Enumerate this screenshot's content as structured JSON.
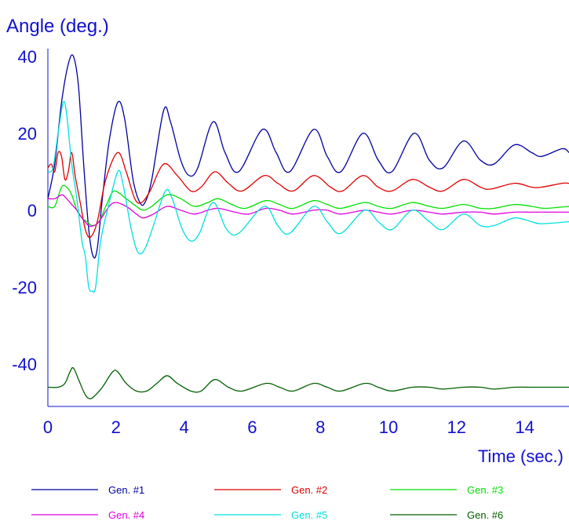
{
  "chart_data": {
    "type": "line",
    "ylabel": "Angle (deg.)",
    "xlabel": "Time (sec.)",
    "xlim": [
      0,
      15.3
    ],
    "ylim": [
      -51,
      42
    ],
    "x_ticks": [
      0,
      2,
      4,
      6,
      8,
      10,
      12,
      14
    ],
    "y_ticks": [
      40,
      20,
      0,
      -20,
      -40
    ],
    "grid": false,
    "legend_position": "bottom",
    "axis_color": "#1010d0",
    "series": [
      {
        "name": "Gen. #1",
        "color": "#0000a0",
        "points": [
          [
            0,
            3
          ],
          [
            0.2,
            12
          ],
          [
            0.4,
            28
          ],
          [
            0.6,
            38
          ],
          [
            0.75,
            40
          ],
          [
            0.9,
            32
          ],
          [
            1.05,
            12
          ],
          [
            1.2,
            -5
          ],
          [
            1.33,
            -12
          ],
          [
            1.45,
            -10
          ],
          [
            1.6,
            3
          ],
          [
            1.8,
            18
          ],
          [
            2.05,
            28
          ],
          [
            2.25,
            24
          ],
          [
            2.5,
            8
          ],
          [
            2.7,
            2
          ],
          [
            2.85,
            2
          ],
          [
            3.05,
            8
          ],
          [
            3.4,
            26
          ],
          [
            3.6,
            23
          ],
          [
            3.9,
            13
          ],
          [
            4.15,
            9
          ],
          [
            4.4,
            11
          ],
          [
            4.85,
            23
          ],
          [
            5.2,
            15
          ],
          [
            5.6,
            10
          ],
          [
            6.3,
            21
          ],
          [
            6.7,
            15
          ],
          [
            7.1,
            10
          ],
          [
            7.8,
            21
          ],
          [
            8.2,
            14
          ],
          [
            8.6,
            10
          ],
          [
            9.25,
            20
          ],
          [
            9.7,
            13
          ],
          [
            10.1,
            10
          ],
          [
            10.75,
            20
          ],
          [
            11.2,
            13
          ],
          [
            11.6,
            11
          ],
          [
            12.2,
            18
          ],
          [
            12.7,
            13
          ],
          [
            13.1,
            12
          ],
          [
            13.7,
            17
          ],
          [
            14.2,
            15
          ],
          [
            14.5,
            14
          ],
          [
            15.1,
            16
          ],
          [
            15.3,
            15
          ]
        ]
      },
      {
        "name": "Gen. #2",
        "color": "#e00000",
        "points": [
          [
            0,
            11
          ],
          [
            0.1,
            12
          ],
          [
            0.2,
            10
          ],
          [
            0.3,
            15
          ],
          [
            0.4,
            14
          ],
          [
            0.5,
            8
          ],
          [
            0.6,
            10
          ],
          [
            0.7,
            15
          ],
          [
            0.8,
            9
          ],
          [
            0.95,
            2
          ],
          [
            1.1,
            -5
          ],
          [
            1.25,
            -7
          ],
          [
            1.45,
            -3
          ],
          [
            1.7,
            8
          ],
          [
            2.05,
            15
          ],
          [
            2.3,
            10
          ],
          [
            2.55,
            3
          ],
          [
            2.75,
            2
          ],
          [
            3,
            5
          ],
          [
            3.4,
            12
          ],
          [
            3.8,
            9
          ],
          [
            4.2,
            5
          ],
          [
            4.5,
            6
          ],
          [
            4.9,
            10
          ],
          [
            5.3,
            7
          ],
          [
            5.7,
            5
          ],
          [
            6.35,
            9
          ],
          [
            6.75,
            7
          ],
          [
            7.2,
            5
          ],
          [
            7.8,
            9
          ],
          [
            8.3,
            6
          ],
          [
            8.65,
            5
          ],
          [
            9.25,
            9
          ],
          [
            9.7,
            6
          ],
          [
            10.1,
            5
          ],
          [
            10.7,
            8
          ],
          [
            11.2,
            6
          ],
          [
            11.6,
            5
          ],
          [
            12.2,
            8
          ],
          [
            12.7,
            6
          ],
          [
            13,
            5.5
          ],
          [
            13.7,
            7
          ],
          [
            14.2,
            6
          ],
          [
            14.5,
            6
          ],
          [
            15.1,
            7
          ],
          [
            15.3,
            7
          ]
        ]
      },
      {
        "name": "Gen. #3",
        "color": "#00e000",
        "points": [
          [
            0,
            1
          ],
          [
            0.2,
            1
          ],
          [
            0.4,
            6
          ],
          [
            0.55,
            6
          ],
          [
            0.7,
            4
          ],
          [
            0.85,
            0
          ],
          [
            1,
            -2
          ],
          [
            1.15,
            -3
          ],
          [
            1.3,
            -4
          ],
          [
            1.5,
            -3
          ],
          [
            1.75,
            2
          ],
          [
            1.95,
            5
          ],
          [
            2.3,
            3
          ],
          [
            2.6,
            1
          ],
          [
            2.8,
            0
          ],
          [
            3.05,
            1
          ],
          [
            3.5,
            4
          ],
          [
            3.9,
            3
          ],
          [
            4.3,
            1
          ],
          [
            4.7,
            2
          ],
          [
            5,
            3
          ],
          [
            5.4,
            1.5
          ],
          [
            5.8,
            0.5
          ],
          [
            6.4,
            2.5
          ],
          [
            6.8,
            1.5
          ],
          [
            7.2,
            0.5
          ],
          [
            7.8,
            2.5
          ],
          [
            8.2,
            1.5
          ],
          [
            8.6,
            0.5
          ],
          [
            9.3,
            2
          ],
          [
            9.7,
            1
          ],
          [
            10.1,
            0.5
          ],
          [
            10.7,
            2
          ],
          [
            11.2,
            1
          ],
          [
            11.6,
            0.5
          ],
          [
            12.2,
            1.5
          ],
          [
            12.7,
            0.5
          ],
          [
            13.1,
            0.5
          ],
          [
            13.7,
            1.5
          ],
          [
            14.2,
            1
          ],
          [
            14.6,
            0.5
          ],
          [
            15.3,
            1
          ]
        ]
      },
      {
        "name": "Gen. #4",
        "color": "#e000e0",
        "points": [
          [
            0,
            3
          ],
          [
            0.2,
            3
          ],
          [
            0.4,
            4
          ],
          [
            0.5,
            3.5
          ],
          [
            0.65,
            2
          ],
          [
            0.85,
            0
          ],
          [
            1,
            -2
          ],
          [
            1.2,
            -4
          ],
          [
            1.35,
            -4
          ],
          [
            1.5,
            -3
          ],
          [
            1.8,
            1
          ],
          [
            2,
            2
          ],
          [
            2.3,
            1
          ],
          [
            2.6,
            -1
          ],
          [
            2.8,
            -2
          ],
          [
            3.1,
            -1
          ],
          [
            3.5,
            1
          ],
          [
            3.9,
            0
          ],
          [
            4.3,
            -1
          ],
          [
            4.7,
            0
          ],
          [
            5,
            0.5
          ],
          [
            5.5,
            -0.5
          ],
          [
            5.9,
            -1
          ],
          [
            6.4,
            0.5
          ],
          [
            6.8,
            0
          ],
          [
            7.2,
            -1
          ],
          [
            7.8,
            0
          ],
          [
            8.2,
            0
          ],
          [
            8.6,
            -1
          ],
          [
            9.3,
            0
          ],
          [
            9.7,
            -0.5
          ],
          [
            10.1,
            -1
          ],
          [
            10.7,
            0
          ],
          [
            11.2,
            -0.5
          ],
          [
            11.6,
            -1
          ],
          [
            12.2,
            -0.5
          ],
          [
            12.7,
            -0.5
          ],
          [
            13.1,
            -1
          ],
          [
            13.7,
            -0.5
          ],
          [
            14.2,
            -0.5
          ],
          [
            14.6,
            -0.5
          ],
          [
            15.3,
            -0.5
          ]
        ]
      },
      {
        "name": "Gen. #5",
        "color": "#00e0e0",
        "points": [
          [
            0,
            10
          ],
          [
            0.15,
            11
          ],
          [
            0.3,
            20
          ],
          [
            0.45,
            28
          ],
          [
            0.55,
            25
          ],
          [
            0.7,
            12
          ],
          [
            0.85,
            3
          ],
          [
            1,
            -8
          ],
          [
            1.1,
            -12
          ],
          [
            1.2,
            -20
          ],
          [
            1.3,
            -21
          ],
          [
            1.4,
            -20
          ],
          [
            1.55,
            -8
          ],
          [
            1.75,
            0
          ],
          [
            2.05,
            10
          ],
          [
            2.2,
            7
          ],
          [
            2.45,
            -5
          ],
          [
            2.65,
            -11
          ],
          [
            2.85,
            -10
          ],
          [
            3.1,
            -4
          ],
          [
            3.45,
            5
          ],
          [
            3.65,
            3
          ],
          [
            3.95,
            -5
          ],
          [
            4.2,
            -8
          ],
          [
            4.45,
            -6
          ],
          [
            4.85,
            2
          ],
          [
            5.25,
            -5
          ],
          [
            5.6,
            -6
          ],
          [
            6.35,
            1
          ],
          [
            6.75,
            -4
          ],
          [
            7.1,
            -6
          ],
          [
            7.8,
            1
          ],
          [
            8.2,
            -3
          ],
          [
            8.6,
            -6
          ],
          [
            9.3,
            0
          ],
          [
            9.7,
            -3
          ],
          [
            10.1,
            -5
          ],
          [
            10.7,
            0
          ],
          [
            11.2,
            -3
          ],
          [
            11.6,
            -5
          ],
          [
            12.2,
            -1
          ],
          [
            12.7,
            -4
          ],
          [
            13.1,
            -4
          ],
          [
            13.7,
            -2
          ],
          [
            14.2,
            -3
          ],
          [
            14.5,
            -3.5
          ],
          [
            15.3,
            -3
          ]
        ]
      },
      {
        "name": "Gen. #6",
        "color": "#006000",
        "points": [
          [
            0,
            -46
          ],
          [
            0.3,
            -46
          ],
          [
            0.5,
            -45
          ],
          [
            0.65,
            -42
          ],
          [
            0.75,
            -41
          ],
          [
            0.9,
            -44
          ],
          [
            1.1,
            -48
          ],
          [
            1.25,
            -49
          ],
          [
            1.4,
            -48
          ],
          [
            1.6,
            -46
          ],
          [
            1.9,
            -42
          ],
          [
            2.05,
            -42
          ],
          [
            2.3,
            -45
          ],
          [
            2.6,
            -47
          ],
          [
            2.9,
            -47
          ],
          [
            3.2,
            -45
          ],
          [
            3.5,
            -43
          ],
          [
            3.8,
            -45
          ],
          [
            4.2,
            -47
          ],
          [
            4.5,
            -47
          ],
          [
            4.9,
            -44
          ],
          [
            5.3,
            -46
          ],
          [
            5.7,
            -47
          ],
          [
            6.4,
            -45
          ],
          [
            6.8,
            -46
          ],
          [
            7.2,
            -47
          ],
          [
            7.8,
            -45
          ],
          [
            8.2,
            -46
          ],
          [
            8.6,
            -47
          ],
          [
            9.3,
            -45
          ],
          [
            9.7,
            -46
          ],
          [
            10.1,
            -47
          ],
          [
            10.7,
            -46
          ],
          [
            11.2,
            -46
          ],
          [
            11.6,
            -46.5
          ],
          [
            12.2,
            -46
          ],
          [
            12.7,
            -46
          ],
          [
            13.1,
            -46.5
          ],
          [
            13.7,
            -46
          ],
          [
            14.2,
            -46
          ],
          [
            14.6,
            -46
          ],
          [
            15.3,
            -46
          ]
        ]
      }
    ]
  }
}
